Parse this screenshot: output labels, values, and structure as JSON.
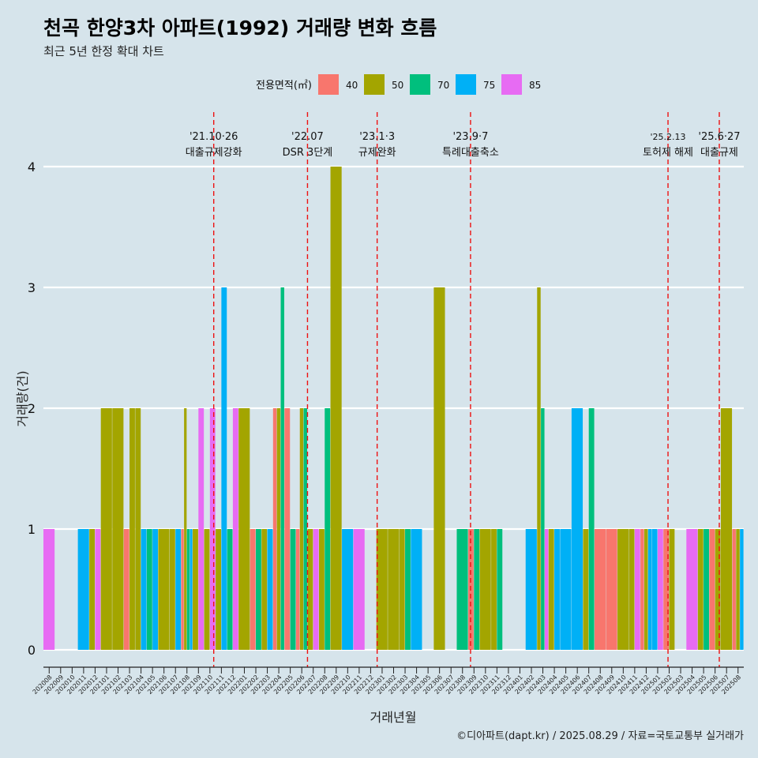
{
  "chart_data": {
    "type": "bar",
    "title": "천곡 한양3차 아파트(1992) 거래량 변화 흐름",
    "subtitle": "최근 5년 한정 확대 차트",
    "xlabel": "거래년월",
    "ylabel": "거래량(건)",
    "caption": "©디아파트(dapt.kr) / 2025.08.29 / 자료=국토교통부 실거래가",
    "ylim": [
      -0.18,
      4.45
    ],
    "yticks": [
      0,
      1,
      2,
      3,
      4
    ],
    "grid": true,
    "legend_position": "top",
    "legend_title": "전용면적(㎡)",
    "series": [
      {
        "name": "40",
        "color": "#f8766d"
      },
      {
        "name": "50",
        "color": "#a3a500"
      },
      {
        "name": "70",
        "color": "#00bf7d"
      },
      {
        "name": "75",
        "color": "#00b0f6"
      },
      {
        "name": "85",
        "color": "#e76bf3"
      }
    ],
    "months": [
      "202008",
      "202009",
      "202010",
      "202011",
      "202012",
      "202101",
      "202102",
      "202103",
      "202104",
      "202105",
      "202106",
      "202107",
      "202108",
      "202109",
      "202110",
      "202111",
      "202112",
      "202201",
      "202202",
      "202203",
      "202204",
      "202205",
      "202206",
      "202207",
      "202208",
      "202209",
      "202210",
      "202211",
      "202212",
      "202301",
      "202302",
      "202303",
      "202304",
      "202305",
      "202306",
      "202307",
      "202308",
      "202309",
      "202310",
      "202311",
      "202312",
      "202401",
      "202402",
      "202403",
      "202404",
      "202405",
      "202406",
      "202407",
      "202408",
      "202409",
      "202410",
      "202411",
      "202412",
      "202501",
      "202502",
      "202503",
      "202504",
      "202505",
      "202506",
      "202507",
      "202508"
    ],
    "bars": [
      {
        "month": "202008",
        "values": [
          {
            "s": "85",
            "v": 1
          }
        ]
      },
      {
        "month": "202011",
        "values": [
          {
            "s": "75",
            "v": 1
          }
        ]
      },
      {
        "month": "202012",
        "values": [
          {
            "s": "50",
            "v": 1
          },
          {
            "s": "85",
            "v": 1
          }
        ]
      },
      {
        "month": "202101",
        "values": [
          {
            "s": "50",
            "v": 2
          }
        ]
      },
      {
        "month": "202102",
        "values": [
          {
            "s": "50",
            "v": 2
          }
        ]
      },
      {
        "month": "202103",
        "values": [
          {
            "s": "40",
            "v": 1
          },
          {
            "s": "50",
            "v": 2
          }
        ]
      },
      {
        "month": "202104",
        "values": [
          {
            "s": "50",
            "v": 2
          },
          {
            "s": "75",
            "v": 1
          }
        ]
      },
      {
        "month": "202105",
        "values": [
          {
            "s": "70",
            "v": 1
          },
          {
            "s": "75",
            "v": 1
          }
        ]
      },
      {
        "month": "202106",
        "values": [
          {
            "s": "50",
            "v": 1
          }
        ]
      },
      {
        "month": "202107",
        "values": [
          {
            "s": "50",
            "v": 1
          },
          {
            "s": "75",
            "v": 1
          }
        ]
      },
      {
        "month": "202108",
        "values": [
          {
            "s": "40",
            "v": 1
          },
          {
            "s": "50",
            "v": 2
          },
          {
            "s": "70",
            "v": 1
          },
          {
            "s": "75",
            "v": 1
          }
        ]
      },
      {
        "month": "202109",
        "values": [
          {
            "s": "50",
            "v": 1
          },
          {
            "s": "85",
            "v": 2
          }
        ]
      },
      {
        "month": "202110",
        "values": [
          {
            "s": "50",
            "v": 1
          },
          {
            "s": "85",
            "v": 2
          }
        ]
      },
      {
        "month": "202111",
        "values": [
          {
            "s": "50",
            "v": 1
          },
          {
            "s": "75",
            "v": 3
          }
        ]
      },
      {
        "month": "202112",
        "values": [
          {
            "s": "70",
            "v": 1
          },
          {
            "s": "85",
            "v": 2
          }
        ]
      },
      {
        "month": "202201",
        "values": [
          {
            "s": "50",
            "v": 2
          }
        ]
      },
      {
        "month": "202202",
        "values": [
          {
            "s": "40",
            "v": 1
          },
          {
            "s": "70",
            "v": 1
          }
        ]
      },
      {
        "month": "202203",
        "values": [
          {
            "s": "50",
            "v": 1
          },
          {
            "s": "75",
            "v": 1
          }
        ]
      },
      {
        "month": "202204",
        "values": [
          {
            "s": "40",
            "v": 2
          },
          {
            "s": "50",
            "v": 2
          },
          {
            "s": "70",
            "v": 3
          }
        ]
      },
      {
        "month": "202205",
        "values": [
          {
            "s": "40",
            "v": 2
          },
          {
            "s": "70",
            "v": 1
          }
        ]
      },
      {
        "month": "202206",
        "values": [
          {
            "s": "40",
            "v": 1
          },
          {
            "s": "50",
            "v": 2
          },
          {
            "s": "70",
            "v": 2
          }
        ]
      },
      {
        "month": "202207",
        "values": [
          {
            "s": "50",
            "v": 1
          },
          {
            "s": "85",
            "v": 1
          }
        ]
      },
      {
        "month": "202208",
        "values": [
          {
            "s": "50",
            "v": 1
          },
          {
            "s": "70",
            "v": 2
          }
        ]
      },
      {
        "month": "202209",
        "values": [
          {
            "s": "50",
            "v": 4
          }
        ]
      },
      {
        "month": "202210",
        "values": [
          {
            "s": "75",
            "v": 1
          }
        ]
      },
      {
        "month": "202211",
        "values": [
          {
            "s": "85",
            "v": 1
          }
        ]
      },
      {
        "month": "202301",
        "values": [
          {
            "s": "50",
            "v": 1
          }
        ]
      },
      {
        "month": "202302",
        "values": [
          {
            "s": "50",
            "v": 1
          }
        ]
      },
      {
        "month": "202303",
        "values": [
          {
            "s": "50",
            "v": 1
          },
          {
            "s": "70",
            "v": 1
          }
        ]
      },
      {
        "month": "202304",
        "values": [
          {
            "s": "75",
            "v": 1
          }
        ]
      },
      {
        "month": "202306",
        "values": [
          {
            "s": "50",
            "v": 3
          }
        ]
      },
      {
        "month": "202308",
        "values": [
          {
            "s": "70",
            "v": 1
          }
        ]
      },
      {
        "month": "202309",
        "values": [
          {
            "s": "40",
            "v": 1
          },
          {
            "s": "70",
            "v": 1
          }
        ]
      },
      {
        "month": "202310",
        "values": [
          {
            "s": "50",
            "v": 1
          }
        ]
      },
      {
        "month": "202311",
        "values": [
          {
            "s": "50",
            "v": 1
          },
          {
            "s": "70",
            "v": 1
          }
        ]
      },
      {
        "month": "202402",
        "values": [
          {
            "s": "75",
            "v": 1
          }
        ]
      },
      {
        "month": "202403",
        "values": [
          {
            "s": "50",
            "v": 3
          },
          {
            "s": "70",
            "v": 2
          },
          {
            "s": "85",
            "v": 1
          }
        ]
      },
      {
        "month": "202404",
        "values": [
          {
            "s": "50",
            "v": 1
          },
          {
            "s": "75",
            "v": 1
          }
        ]
      },
      {
        "month": "202405",
        "values": [
          {
            "s": "75",
            "v": 1
          }
        ]
      },
      {
        "month": "202406",
        "values": [
          {
            "s": "75",
            "v": 2
          }
        ]
      },
      {
        "month": "202407",
        "values": [
          {
            "s": "50",
            "v": 1
          },
          {
            "s": "70",
            "v": 2
          }
        ]
      },
      {
        "month": "202408",
        "values": [
          {
            "s": "40",
            "v": 1
          }
        ]
      },
      {
        "month": "202409",
        "values": [
          {
            "s": "40",
            "v": 1
          }
        ]
      },
      {
        "month": "202410",
        "values": [
          {
            "s": "50",
            "v": 1
          }
        ]
      },
      {
        "month": "202411",
        "values": [
          {
            "s": "50",
            "v": 1
          },
          {
            "s": "85",
            "v": 1
          }
        ]
      },
      {
        "month": "202412",
        "values": [
          {
            "s": "40",
            "v": 1
          },
          {
            "s": "50",
            "v": 1
          },
          {
            "s": "75",
            "v": 1
          }
        ]
      },
      {
        "month": "202501",
        "values": [
          {
            "s": "75",
            "v": 1
          },
          {
            "s": "85",
            "v": 1
          }
        ]
      },
      {
        "month": "202502",
        "values": [
          {
            "s": "40",
            "v": 1
          },
          {
            "s": "50",
            "v": 1
          }
        ]
      },
      {
        "month": "202504",
        "values": [
          {
            "s": "85",
            "v": 1
          }
        ]
      },
      {
        "month": "202505",
        "values": [
          {
            "s": "50",
            "v": 1
          },
          {
            "s": "70",
            "v": 1
          }
        ]
      },
      {
        "month": "202506",
        "values": [
          {
            "s": "40",
            "v": 1
          },
          {
            "s": "50",
            "v": 1
          }
        ]
      },
      {
        "month": "202507",
        "values": [
          {
            "s": "50",
            "v": 2
          }
        ]
      },
      {
        "month": "202508",
        "values": [
          {
            "s": "40",
            "v": 1
          },
          {
            "s": "50",
            "v": 1
          },
          {
            "s": "75",
            "v": 1
          }
        ]
      }
    ],
    "events": [
      {
        "date": "2021-10-26",
        "label_date": "'21.10·26",
        "label": "대출규제강화"
      },
      {
        "date": "2022-07-01",
        "label_date": "'22.07",
        "label": "DSR 3단계"
      },
      {
        "date": "2023-01-03",
        "label_date": "'23.1·3",
        "label": "규제완화"
      },
      {
        "date": "2023-09-07",
        "label_date": "'23.9·7",
        "label": "특례대출축소"
      },
      {
        "date": "2025-02-13",
        "label_date": "'25.2.13",
        "label": "토허제 해제"
      },
      {
        "date": "2025-06-27",
        "label_date": "'25.6·27",
        "label": "대출규제"
      }
    ]
  }
}
